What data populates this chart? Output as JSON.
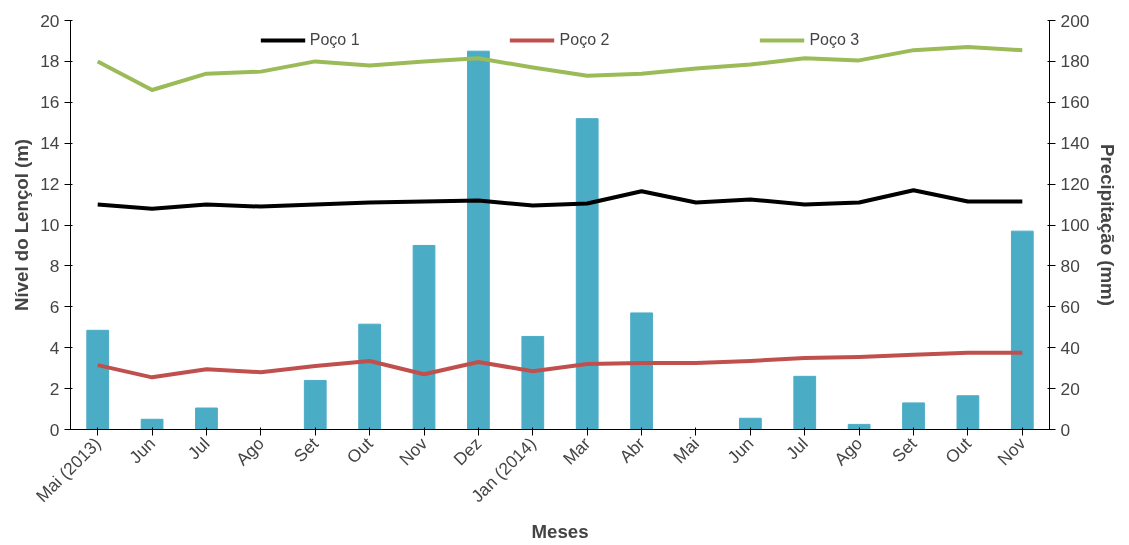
{
  "chart_data": {
    "type": "line",
    "xlabel": "Meses",
    "ylabel": "Nível do Lençol (m)",
    "y2label": "Precipitação (mm)",
    "categories": [
      "Mai (2013)",
      "Jun",
      "Jul",
      "Ago",
      "Set",
      "Out",
      "Nov",
      "Dez",
      "Jan (2014)",
      "Mar",
      "Abr",
      "Mai",
      "Jun",
      "Jul",
      "Ago",
      "Set",
      "Out",
      "Nov"
    ],
    "series": [
      {
        "type": "bar",
        "axis": "y2",
        "color": "#4bacc6",
        "values": [
          48.5,
          5,
          10.5,
          0,
          24,
          51.5,
          90,
          185,
          45.5,
          152,
          57,
          0,
          5.5,
          26,
          2.5,
          13,
          16.5,
          97
        ]
      },
      {
        "name": "Poço 1",
        "color": "#000000",
        "values": [
          11.0,
          10.8,
          11.0,
          10.9,
          11.0,
          11.1,
          11.15,
          11.2,
          10.95,
          11.05,
          11.65,
          11.1,
          11.25,
          11.0,
          11.1,
          11.7,
          11.15,
          11.15
        ]
      },
      {
        "name": "Poço 2",
        "color": "#c0504d",
        "values": [
          3.15,
          2.55,
          2.95,
          2.8,
          3.1,
          3.35,
          2.7,
          3.3,
          2.85,
          3.2,
          3.25,
          3.25,
          3.35,
          3.5,
          3.55,
          3.65,
          3.75,
          3.75
        ]
      },
      {
        "name": "Poço 3",
        "color": "#9bbb59",
        "values": [
          18.0,
          16.6,
          17.4,
          17.5,
          18.0,
          17.8,
          18.0,
          18.15,
          17.7,
          17.3,
          17.4,
          17.65,
          17.85,
          18.15,
          18.05,
          18.55,
          18.7,
          18.55
        ]
      }
    ],
    "ylim": [
      0,
      20
    ],
    "yticks": [
      0,
      2,
      4,
      6,
      8,
      10,
      12,
      14,
      16,
      18,
      20
    ],
    "y2lim": [
      0,
      200
    ],
    "y2ticks": [
      0,
      20,
      40,
      60,
      80,
      100,
      120,
      140,
      160,
      180,
      200
    ],
    "grid": false,
    "legend": "top",
    "marker": "none",
    "line_style": "solid"
  }
}
